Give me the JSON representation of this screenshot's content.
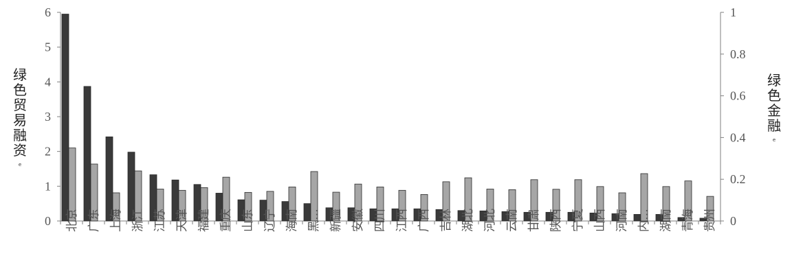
{
  "chart_data": {
    "type": "bar",
    "categories": [
      "北京",
      "广东",
      "上海",
      "浙江",
      "江苏",
      "天津",
      "福建",
      "重庆",
      "山东",
      "辽宁",
      "海南",
      "黑…",
      "新疆",
      "安徽",
      "四川",
      "江西",
      "广西",
      "吉林",
      "湖北",
      "河北",
      "云南",
      "甘肃",
      "陕西",
      "宁夏",
      "山西",
      "河南",
      "内…",
      "湖南",
      "青海",
      "贵州"
    ],
    "series": [
      {
        "axis": "left",
        "values": [
          5.95,
          3.87,
          2.42,
          1.98,
          1.33,
          1.18,
          1.05,
          0.8,
          0.61,
          0.6,
          0.56,
          0.5,
          0.38,
          0.38,
          0.35,
          0.35,
          0.35,
          0.33,
          0.3,
          0.29,
          0.27,
          0.25,
          0.25,
          0.25,
          0.23,
          0.21,
          0.19,
          0.19,
          0.1,
          0.08
        ]
      },
      {
        "axis": "right",
        "values": [
          0.35,
          0.273,
          0.135,
          0.24,
          0.153,
          0.147,
          0.16,
          0.21,
          0.137,
          0.142,
          0.163,
          0.237,
          0.138,
          0.177,
          0.163,
          0.147,
          0.127,
          0.188,
          0.207,
          0.153,
          0.15,
          0.198,
          0.152,
          0.198,
          0.165,
          0.135,
          0.227,
          0.165,
          0.192,
          0.118
        ]
      }
    ],
    "ylim_left": [
      0,
      6
    ],
    "yticks_left": [
      "0",
      "1",
      "2",
      "3",
      "4",
      "5",
      "6"
    ],
    "ylim_right": [
      0,
      1
    ],
    "yticks_right": [
      "0",
      "0.2",
      "0.4",
      "0.6",
      "0.8",
      "1"
    ],
    "ylabel_left": [
      "绿",
      "色",
      "贸",
      "易",
      "融",
      "资"
    ],
    "ylabel_right": [
      "绿",
      "色",
      "金",
      "融"
    ],
    "ylabel_mark": "e",
    "grid": false,
    "legend": "none",
    "colors": {
      "series_left": "#3a3a3a",
      "series_right": "#a6a6a6",
      "axis": "#7f7f7f",
      "text": "#555555"
    }
  }
}
